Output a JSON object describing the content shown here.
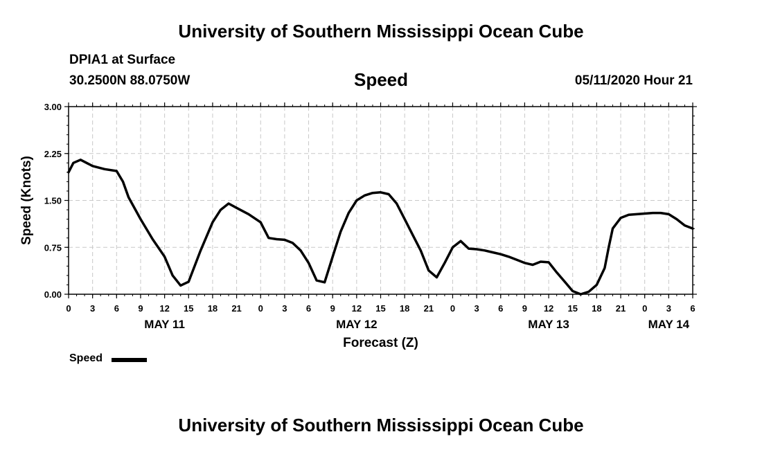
{
  "header": {
    "title_top": "University of Southern Mississippi Ocean Cube",
    "title_bottom": "University of Southern Mississippi Ocean Cube",
    "station": "DPIA1 at Surface",
    "coords": "30.2500N 88.0750W",
    "run_time": "05/11/2020 Hour 21"
  },
  "chart_data": {
    "type": "line",
    "title": "Speed",
    "xlabel": "Forecast (Z)",
    "ylabel": "Speed (Knots)",
    "ylim": [
      0,
      3
    ],
    "xlim": [
      0,
      78
    ],
    "x_unit": "hours since May 11 00Z",
    "yticks": [
      0,
      0.75,
      1.5,
      2.25,
      3
    ],
    "ytick_labels": [
      "0.00",
      "0.75",
      "1.50",
      "2.25",
      "3.00"
    ],
    "xticks": [
      0,
      3,
      6,
      9,
      12,
      15,
      18,
      21,
      24,
      27,
      30,
      33,
      36,
      39,
      42,
      45,
      48,
      51,
      54,
      57,
      60,
      63,
      66,
      69,
      72,
      75,
      78
    ],
    "xtick_labels": [
      "0",
      "3",
      "6",
      "9",
      "12",
      "15",
      "18",
      "21",
      "0",
      "3",
      "6",
      "9",
      "12",
      "15",
      "18",
      "21",
      "0",
      "3",
      "6",
      "9",
      "12",
      "15",
      "18",
      "21",
      "0",
      "3",
      "6"
    ],
    "day_labels": [
      {
        "x": 12,
        "label": "MAY 11"
      },
      {
        "x": 36,
        "label": "MAY 12"
      },
      {
        "x": 60,
        "label": "MAY 13"
      },
      {
        "x": 75,
        "label": "MAY 14"
      }
    ],
    "grid": true,
    "legend": "bottom-left",
    "series": [
      {
        "name": "Speed",
        "color": "#000000",
        "x": [
          0,
          0.6,
          1.5,
          3,
          4.5,
          6,
          6.8,
          7.5,
          9,
          10.5,
          12,
          13,
          14,
          15,
          16.5,
          18,
          19,
          20,
          21,
          22.5,
          24,
          25,
          26,
          27,
          28,
          29,
          30,
          31,
          32,
          33,
          34,
          35,
          36,
          37,
          38,
          39,
          40,
          41,
          42,
          43,
          44,
          45,
          46,
          47,
          48,
          49,
          50,
          51,
          52,
          53,
          54,
          55,
          56,
          57,
          58,
          59,
          60,
          61,
          62,
          63,
          64,
          65,
          66,
          67,
          67.5,
          68,
          69,
          70,
          71,
          72,
          73,
          74,
          75,
          76,
          77,
          78
        ],
        "values": [
          1.95,
          2.1,
          2.15,
          2.05,
          2.0,
          1.97,
          1.8,
          1.55,
          1.2,
          0.88,
          0.6,
          0.3,
          0.14,
          0.2,
          0.7,
          1.15,
          1.35,
          1.45,
          1.38,
          1.28,
          1.15,
          0.9,
          0.88,
          0.87,
          0.82,
          0.7,
          0.5,
          0.22,
          0.19,
          0.6,
          1.0,
          1.3,
          1.5,
          1.58,
          1.62,
          1.63,
          1.6,
          1.45,
          1.2,
          0.95,
          0.7,
          0.38,
          0.27,
          0.5,
          0.75,
          0.85,
          0.73,
          0.72,
          0.7,
          0.67,
          0.64,
          0.6,
          0.55,
          0.5,
          0.47,
          0.52,
          0.51,
          0.35,
          0.2,
          0.05,
          0.0,
          0.04,
          0.15,
          0.42,
          0.75,
          1.05,
          1.22,
          1.27,
          1.28,
          1.29,
          1.3,
          1.3,
          1.28,
          1.2,
          1.1,
          1.05
        ]
      }
    ]
  },
  "legend": {
    "label": "Speed"
  }
}
